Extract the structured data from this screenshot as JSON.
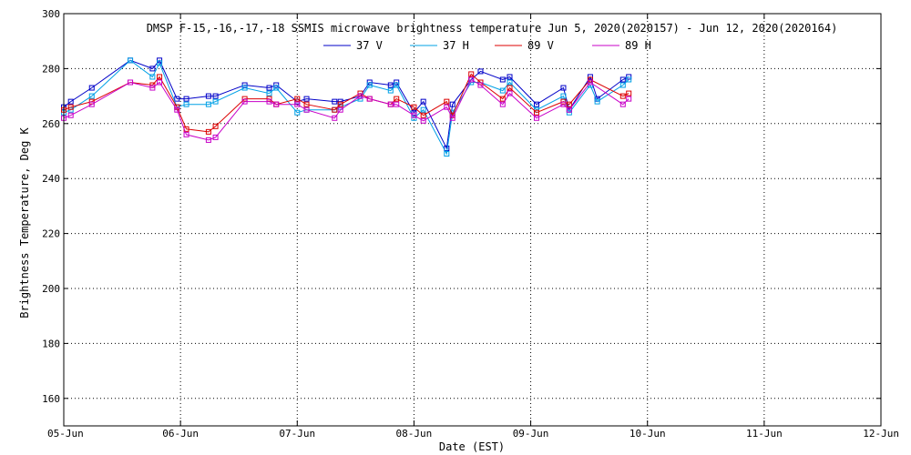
{
  "chart_data": {
    "type": "line",
    "title": "DMSP F-15,-16,-17,-18 SSMIS microwave brightness temperature Jun  5, 2020(2020157) - Jun 12, 2020(2020164)",
    "xlabel": "Date (EST)",
    "ylabel": "Brightness Temperature, Deg K",
    "xlim": [
      0,
      7
    ],
    "ylim": [
      150,
      300
    ],
    "grid": true,
    "legend_position": "top-center",
    "x_ticks": [
      {
        "value": 0,
        "label": "05-Jun"
      },
      {
        "value": 1,
        "label": "06-Jun"
      },
      {
        "value": 2,
        "label": "07-Jun"
      },
      {
        "value": 3,
        "label": "08-Jun"
      },
      {
        "value": 4,
        "label": "09-Jun"
      },
      {
        "value": 5,
        "label": "10-Jun"
      },
      {
        "value": 6,
        "label": "11-Jun"
      },
      {
        "value": 7,
        "label": "12-Jun"
      }
    ],
    "y_ticks": [
      {
        "value": 160,
        "label": "160"
      },
      {
        "value": 180,
        "label": "180"
      },
      {
        "value": 200,
        "label": "200"
      },
      {
        "value": 220,
        "label": "220"
      },
      {
        "value": 240,
        "label": "240"
      },
      {
        "value": 260,
        "label": "260"
      },
      {
        "value": 280,
        "label": "280"
      },
      {
        "value": 300,
        "label": "300"
      }
    ],
    "series": [
      {
        "name": "37 V",
        "color": "#0000c8",
        "points": [
          [
            0.0,
            266
          ],
          [
            0.06,
            268
          ],
          [
            0.24,
            273
          ],
          [
            0.57,
            283
          ],
          [
            0.76,
            280
          ],
          [
            0.82,
            283
          ],
          [
            0.97,
            269
          ],
          [
            1.05,
            269
          ],
          [
            1.24,
            270
          ],
          [
            1.3,
            270
          ],
          [
            1.55,
            274
          ],
          [
            1.76,
            273
          ],
          [
            1.82,
            274
          ],
          [
            2.0,
            268
          ],
          [
            2.08,
            269
          ],
          [
            2.32,
            268
          ],
          [
            2.37,
            268
          ],
          [
            2.54,
            270
          ],
          [
            2.62,
            275
          ],
          [
            2.8,
            274
          ],
          [
            2.85,
            275
          ],
          [
            3.0,
            264
          ],
          [
            3.08,
            268
          ],
          [
            3.28,
            251
          ],
          [
            3.33,
            267
          ],
          [
            3.49,
            276
          ],
          [
            3.57,
            279
          ],
          [
            3.76,
            276
          ],
          [
            3.82,
            277
          ],
          [
            4.05,
            267
          ],
          [
            4.28,
            273
          ],
          [
            4.33,
            265
          ],
          [
            4.51,
            277
          ],
          [
            4.57,
            269
          ],
          [
            4.79,
            276
          ],
          [
            4.84,
            277
          ]
        ]
      },
      {
        "name": "37 H",
        "color": "#00a0e6",
        "points": [
          [
            0.0,
            264
          ],
          [
            0.06,
            265
          ],
          [
            0.24,
            270
          ],
          [
            0.57,
            283
          ],
          [
            0.76,
            277
          ],
          [
            0.82,
            282
          ],
          [
            0.97,
            266
          ],
          [
            1.05,
            267
          ],
          [
            1.24,
            267
          ],
          [
            1.3,
            268
          ],
          [
            1.55,
            273
          ],
          [
            1.76,
            271
          ],
          [
            1.82,
            273
          ],
          [
            2.0,
            264
          ],
          [
            2.08,
            265
          ],
          [
            2.32,
            265
          ],
          [
            2.37,
            266
          ],
          [
            2.54,
            269
          ],
          [
            2.62,
            274
          ],
          [
            2.8,
            272
          ],
          [
            2.85,
            274
          ],
          [
            3.0,
            262
          ],
          [
            3.08,
            265
          ],
          [
            3.28,
            249
          ],
          [
            3.33,
            264
          ],
          [
            3.49,
            275
          ],
          [
            3.57,
            275
          ],
          [
            3.76,
            272
          ],
          [
            3.82,
            275
          ],
          [
            4.05,
            265
          ],
          [
            4.28,
            270
          ],
          [
            4.33,
            264
          ],
          [
            4.51,
            274
          ],
          [
            4.57,
            268
          ],
          [
            4.79,
            274
          ],
          [
            4.84,
            276
          ]
        ]
      },
      {
        "name": "89 V",
        "color": "#dc0000",
        "points": [
          [
            0.0,
            265
          ],
          [
            0.06,
            266
          ],
          [
            0.24,
            268
          ],
          [
            0.57,
            275
          ],
          [
            0.76,
            274
          ],
          [
            0.82,
            277
          ],
          [
            0.97,
            266
          ],
          [
            1.05,
            258
          ],
          [
            1.24,
            257
          ],
          [
            1.3,
            259
          ],
          [
            1.55,
            269
          ],
          [
            1.76,
            269
          ],
          [
            1.82,
            267
          ],
          [
            2.0,
            269
          ],
          [
            2.08,
            267
          ],
          [
            2.32,
            265
          ],
          [
            2.37,
            267
          ],
          [
            2.54,
            271
          ],
          [
            2.62,
            269
          ],
          [
            2.8,
            267
          ],
          [
            2.85,
            269
          ],
          [
            3.0,
            266
          ],
          [
            3.08,
            263
          ],
          [
            3.28,
            268
          ],
          [
            3.33,
            263
          ],
          [
            3.49,
            278
          ],
          [
            3.57,
            275
          ],
          [
            3.76,
            269
          ],
          [
            3.82,
            273
          ],
          [
            4.05,
            264
          ],
          [
            4.28,
            268
          ],
          [
            4.33,
            267
          ],
          [
            4.51,
            276
          ],
          [
            4.79,
            270
          ],
          [
            4.84,
            271
          ]
        ]
      },
      {
        "name": "89 H",
        "color": "#c800c8",
        "points": [
          [
            0.0,
            262
          ],
          [
            0.06,
            263
          ],
          [
            0.24,
            267
          ],
          [
            0.57,
            275
          ],
          [
            0.76,
            273
          ],
          [
            0.82,
            275
          ],
          [
            0.97,
            265
          ],
          [
            1.05,
            256
          ],
          [
            1.24,
            254
          ],
          [
            1.3,
            255
          ],
          [
            1.55,
            268
          ],
          [
            1.76,
            268
          ],
          [
            1.82,
            267
          ],
          [
            2.0,
            267
          ],
          [
            2.08,
            265
          ],
          [
            2.32,
            262
          ],
          [
            2.37,
            265
          ],
          [
            2.54,
            270
          ],
          [
            2.62,
            269
          ],
          [
            2.8,
            267
          ],
          [
            2.85,
            267
          ],
          [
            3.0,
            263
          ],
          [
            3.08,
            261
          ],
          [
            3.28,
            266
          ],
          [
            3.33,
            262
          ],
          [
            3.49,
            276
          ],
          [
            3.57,
            274
          ],
          [
            3.76,
            267
          ],
          [
            3.82,
            271
          ],
          [
            4.05,
            262
          ],
          [
            4.28,
            267
          ],
          [
            4.33,
            265
          ],
          [
            4.51,
            275
          ],
          [
            4.79,
            267
          ],
          [
            4.84,
            269
          ]
        ]
      }
    ]
  }
}
